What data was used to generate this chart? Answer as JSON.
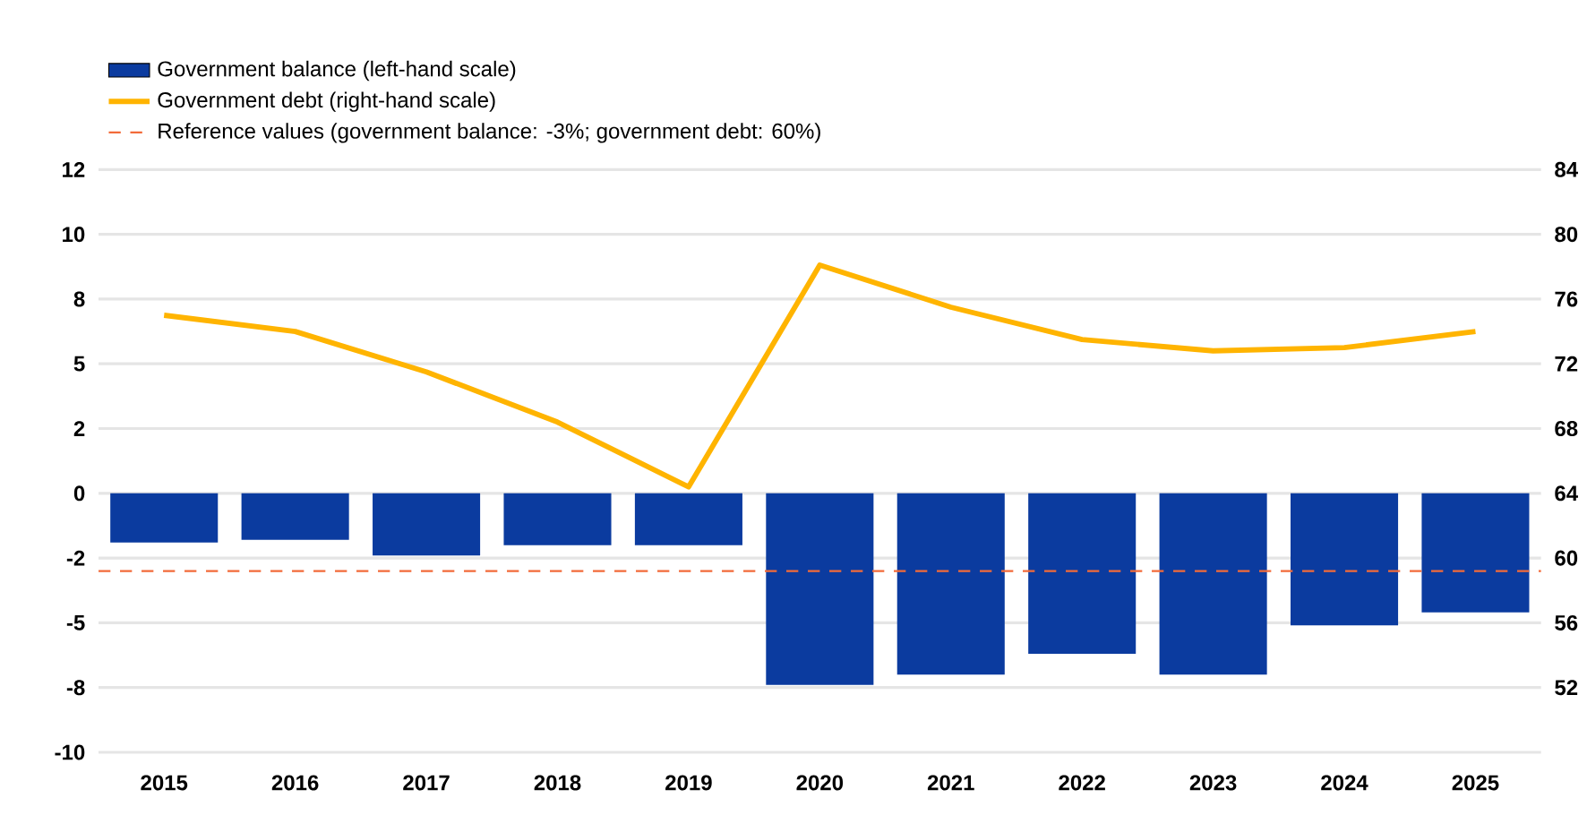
{
  "chart_data": {
    "type": "bar",
    "categories": [
      "2015",
      "2016",
      "2017",
      "2018",
      "2019",
      "2020",
      "2021",
      "2022",
      "2023",
      "2024",
      "2025"
    ],
    "series": [
      {
        "name": "Government balance (left-hand scale)",
        "axis": "y",
        "color": "#0b3b9f",
        "values": [
          -1.9,
          -1.8,
          -2.4,
          -2.0,
          -2.0,
          -7.4,
          -7.0,
          -6.2,
          -7.0,
          -5.1,
          -4.6
        ]
      },
      {
        "name": "Government debt (right-hand scale)",
        "type": "line",
        "axis": "y2",
        "color": "#ffb400",
        "values": [
          75.0,
          74.0,
          71.5,
          68.4,
          64.4,
          78.1,
          75.5,
          73.5,
          72.8,
          73.0,
          74.0
        ]
      }
    ],
    "ylim": [
      -10,
      12.5
    ],
    "yticks": [
      {
        "value": -10,
        "label": "-10"
      },
      {
        "value": -7.5,
        "label": "-8"
      },
      {
        "value": -5,
        "label": "-5"
      },
      {
        "value": -2.5,
        "label": "-2"
      },
      {
        "value": 0,
        "label": "0"
      },
      {
        "value": 2.5,
        "label": "2"
      },
      {
        "value": 5,
        "label": "5"
      },
      {
        "value": 7.5,
        "label": "8"
      },
      {
        "value": 10,
        "label": "10"
      },
      {
        "value": 12.5,
        "label": "12"
      }
    ],
    "y2lim": [
      48,
      84
    ],
    "y2ticks": [
      52,
      56,
      60,
      64,
      68,
      72,
      76,
      80,
      84
    ],
    "ref_lines": [
      {
        "axis": "y",
        "value": -3,
        "label": "Reference values (government balance: -3%; government debt: 60%)",
        "color": "#f26b3a",
        "line_style": "dashed"
      }
    ],
    "grid": "y",
    "legend": "top left"
  }
}
